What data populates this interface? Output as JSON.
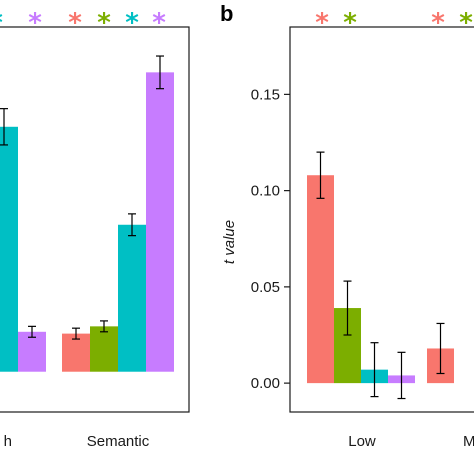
{
  "colors": [
    "#F8766D",
    "#7CAE00",
    "#00BFC4",
    "#C77CFF"
  ],
  "chart_data": [
    {
      "type": "bar",
      "panel_label": "",
      "categories": [
        "h",
        "Semantic"
      ],
      "ylabel": "",
      "ylim": [
        -0.02,
        0.19
      ],
      "series": [
        {
          "values": [
            null,
            0.021
          ]
        },
        {
          "values": [
            null,
            0.025
          ]
        },
        {
          "values": [
            0.135,
            0.081
          ]
        },
        {
          "values": [
            0.022,
            0.165
          ]
        }
      ],
      "errors": [
        [
          null,
          0.003
        ],
        [
          null,
          0.003
        ],
        [
          0.01,
          0.006
        ],
        [
          0.003,
          0.009
        ]
      ],
      "significance": [
        "*",
        "*",
        "*",
        "*",
        "*"
      ]
    },
    {
      "type": "bar",
      "panel_label": "b",
      "categories": [
        "Low",
        "M"
      ],
      "ylabel": "t value",
      "ylim": [
        -0.015,
        0.185
      ],
      "yticks": [
        "0.00",
        "0.05",
        "0.10",
        "0.15"
      ],
      "series": [
        {
          "values": [
            0.108,
            0.018
          ]
        },
        {
          "values": [
            0.039,
            null
          ]
        },
        {
          "values": [
            0.007,
            null
          ]
        },
        {
          "values": [
            0.004,
            null
          ]
        }
      ],
      "errors": [
        [
          0.012,
          0.013
        ],
        [
          0.014,
          0.017
        ],
        [
          0.014,
          null
        ],
        [
          0.012,
          null
        ]
      ],
      "significance": [
        "*",
        "*",
        "*",
        "*"
      ]
    }
  ]
}
